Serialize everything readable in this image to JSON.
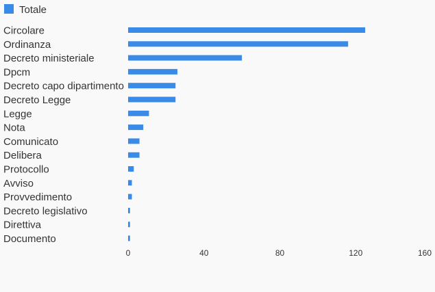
{
  "chart_data": {
    "type": "bar",
    "orientation": "horizontal",
    "categories": [
      "Circolare",
      "Ordinanza",
      "Decreto ministeriale",
      "Dpcm",
      "Decreto capo dipartimento",
      "Decreto Legge",
      "Legge",
      "Nota",
      "Comunicato",
      "Delibera",
      "Protocollo",
      "Avviso",
      "Provvedimento",
      "Decreto legislativo",
      "Direttiva",
      "Documento"
    ],
    "series": [
      {
        "name": "Totale",
        "color": "#3a8be8",
        "values": [
          125,
          116,
          60,
          26,
          25,
          25,
          11,
          8,
          6,
          6,
          3,
          2,
          2,
          1,
          1,
          1
        ]
      }
    ],
    "xlim": [
      0,
      160
    ],
    "xticks": [
      "0",
      "40",
      "80",
      "120",
      "160"
    ],
    "grid": false,
    "legend": "top-left"
  }
}
